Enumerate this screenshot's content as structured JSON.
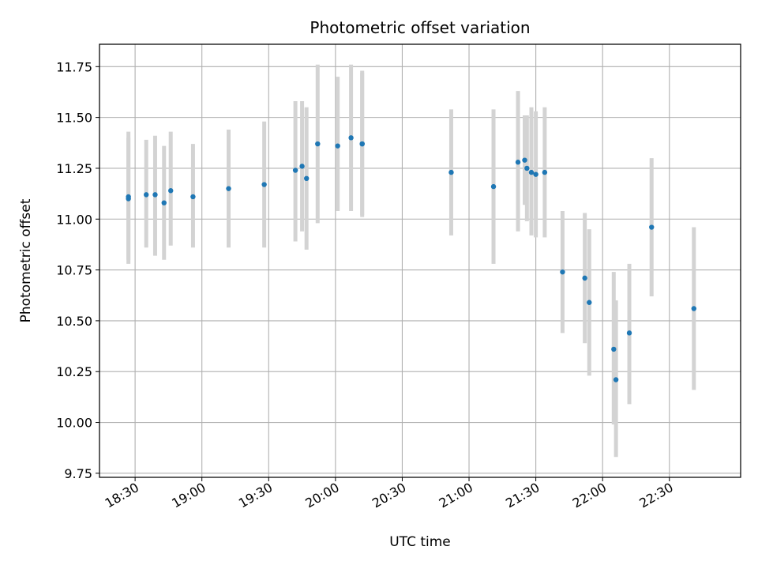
{
  "chart_data": {
    "type": "scatter",
    "title": "Photometric offset variation",
    "xlabel": "UTC time",
    "ylabel": "Photometric offset",
    "x_ticks": [
      "18:30",
      "19:00",
      "19:30",
      "20:00",
      "20:30",
      "21:00",
      "21:30",
      "22:00",
      "22:30"
    ],
    "y_ticks": [
      "9.75",
      "10.00",
      "10.25",
      "10.50",
      "10.75",
      "11.00",
      "11.25",
      "11.50",
      "11.75"
    ],
    "xlim": [
      "18:14",
      "23:02"
    ],
    "ylim": [
      9.73,
      11.86
    ],
    "grid": true,
    "marker_color": "#1f77b4",
    "errorbar_color": "#d3d3d3",
    "points": [
      {
        "x": "18:27",
        "y": 11.11,
        "ylo": 10.78,
        "yhi": 11.43
      },
      {
        "x": "18:27",
        "y": 11.1,
        "ylo": 10.8,
        "yhi": 11.4
      },
      {
        "x": "18:35",
        "y": 11.12,
        "ylo": 10.86,
        "yhi": 11.39
      },
      {
        "x": "18:39",
        "y": 11.12,
        "ylo": 10.82,
        "yhi": 11.41
      },
      {
        "x": "18:43",
        "y": 11.08,
        "ylo": 10.8,
        "yhi": 11.36
      },
      {
        "x": "18:46",
        "y": 11.14,
        "ylo": 10.87,
        "yhi": 11.43
      },
      {
        "x": "18:56",
        "y": 11.11,
        "ylo": 10.86,
        "yhi": 11.37
      },
      {
        "x": "19:12",
        "y": 11.15,
        "ylo": 10.86,
        "yhi": 11.44
      },
      {
        "x": "19:28",
        "y": 11.17,
        "ylo": 10.86,
        "yhi": 11.48
      },
      {
        "x": "19:42",
        "y": 11.24,
        "ylo": 10.89,
        "yhi": 11.58
      },
      {
        "x": "19:45",
        "y": 11.26,
        "ylo": 10.94,
        "yhi": 11.58
      },
      {
        "x": "19:47",
        "y": 11.2,
        "ylo": 10.85,
        "yhi": 11.55
      },
      {
        "x": "19:52",
        "y": 11.37,
        "ylo": 10.98,
        "yhi": 11.76
      },
      {
        "x": "20:01",
        "y": 11.36,
        "ylo": 11.04,
        "yhi": 11.7
      },
      {
        "x": "20:07",
        "y": 11.4,
        "ylo": 11.04,
        "yhi": 11.76
      },
      {
        "x": "20:12",
        "y": 11.37,
        "ylo": 11.01,
        "yhi": 11.73
      },
      {
        "x": "20:12",
        "y": 11.37,
        "ylo": 11.02,
        "yhi": 11.72
      },
      {
        "x": "20:52",
        "y": 11.23,
        "ylo": 10.92,
        "yhi": 11.54
      },
      {
        "x": "21:11",
        "y": 11.16,
        "ylo": 10.78,
        "yhi": 11.54
      },
      {
        "x": "21:22",
        "y": 11.28,
        "ylo": 10.94,
        "yhi": 11.63
      },
      {
        "x": "21:25",
        "y": 11.29,
        "ylo": 11.07,
        "yhi": 11.51
      },
      {
        "x": "21:26",
        "y": 11.25,
        "ylo": 10.99,
        "yhi": 11.51
      },
      {
        "x": "21:28",
        "y": 11.23,
        "ylo": 10.92,
        "yhi": 11.55
      },
      {
        "x": "21:30",
        "y": 11.22,
        "ylo": 10.91,
        "yhi": 11.53
      },
      {
        "x": "21:34",
        "y": 11.23,
        "ylo": 10.91,
        "yhi": 11.55
      },
      {
        "x": "21:42",
        "y": 10.74,
        "ylo": 10.44,
        "yhi": 11.04
      },
      {
        "x": "21:52",
        "y": 10.71,
        "ylo": 10.39,
        "yhi": 11.03
      },
      {
        "x": "21:54",
        "y": 10.59,
        "ylo": 10.23,
        "yhi": 10.95
      },
      {
        "x": "22:05",
        "y": 10.36,
        "ylo": 9.99,
        "yhi": 10.74
      },
      {
        "x": "22:06",
        "y": 10.21,
        "ylo": 9.83,
        "yhi": 10.6
      },
      {
        "x": "22:12",
        "y": 10.44,
        "ylo": 10.09,
        "yhi": 10.78
      },
      {
        "x": "22:22",
        "y": 10.96,
        "ylo": 10.62,
        "yhi": 11.3
      },
      {
        "x": "22:41",
        "y": 10.56,
        "ylo": 10.16,
        "yhi": 10.96
      }
    ]
  }
}
